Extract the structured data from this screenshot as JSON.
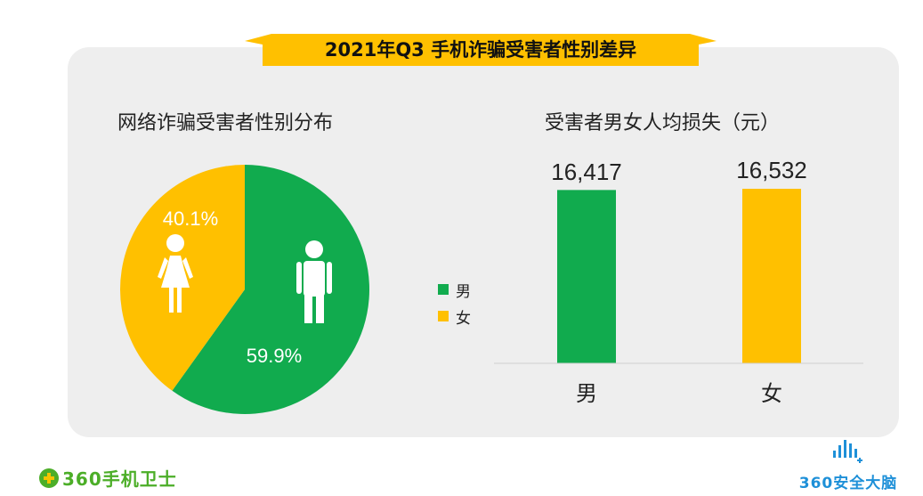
{
  "header": {
    "title": "2021年Q3 手机诈骗受害者性别差异"
  },
  "chart_data": [
    {
      "type": "pie",
      "title": "网络诈骗受害者性别分布",
      "categories": [
        "男",
        "女"
      ],
      "values": [
        59.9,
        40.1
      ],
      "labels": [
        "59.9%",
        "40.1%"
      ],
      "colors": [
        "#11ab4e",
        "#ffc000"
      ],
      "legend": [
        "男",
        "女"
      ],
      "legend_position": "right"
    },
    {
      "type": "bar",
      "title": "受害者男女人均损失（元）",
      "categories": [
        "男",
        "女"
      ],
      "values": [
        16417,
        16532
      ],
      "data_labels": [
        "16,417",
        "16,532"
      ],
      "colors": [
        "#11ab4e",
        "#ffc000"
      ],
      "grid": false
    }
  ],
  "branding": {
    "left_logo": "360手机卫士",
    "right_logo": "360安全大脑"
  }
}
